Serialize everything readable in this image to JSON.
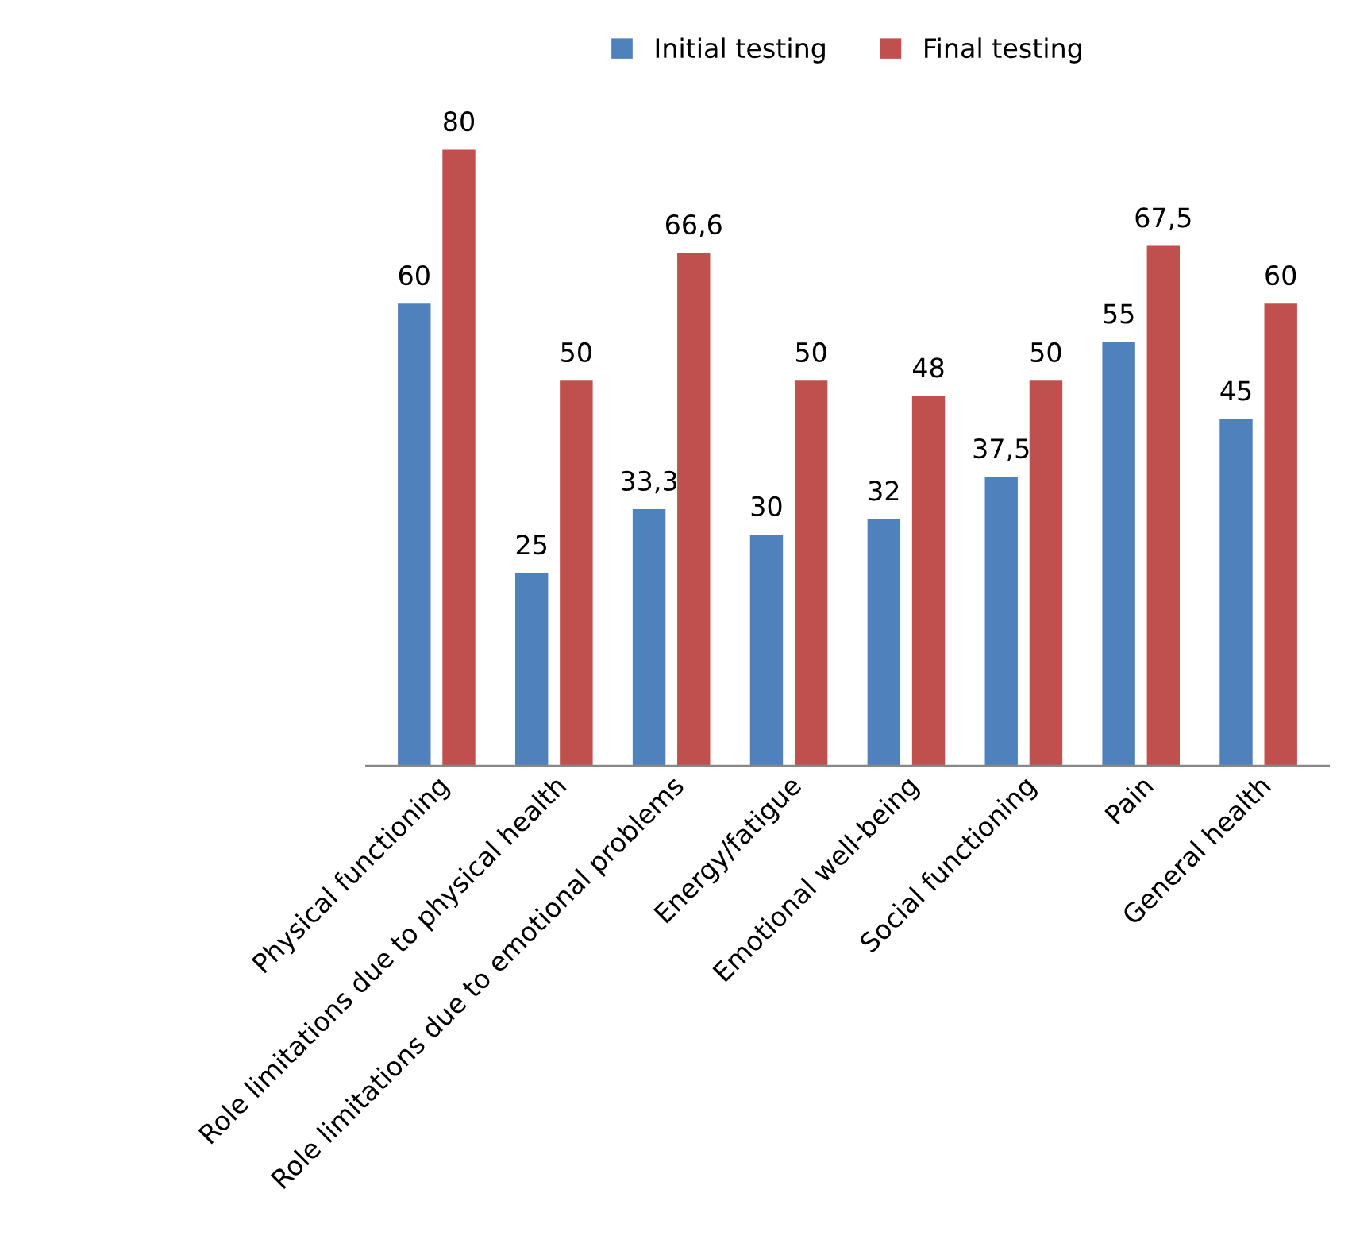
{
  "chart_data": {
    "type": "bar",
    "categories": [
      "Physical functioning",
      "Role limitations due to physical health",
      "Role limitations due to emotional problems",
      "Energy/fatigue",
      "Emotional well-being",
      "Social functioning",
      "Pain",
      "General health"
    ],
    "series": [
      {
        "name": "Initial testing",
        "color": "#4f81bd",
        "values": [
          60,
          25,
          33.3,
          30,
          32,
          37.5,
          55,
          45
        ],
        "value_labels": [
          "60",
          "25",
          "33,3",
          "30",
          "32",
          "37,5",
          "55",
          "45"
        ]
      },
      {
        "name": "Final testing",
        "color": "#c0504d",
        "values": [
          80,
          50,
          66.6,
          50,
          48,
          50,
          67.5,
          60
        ],
        "value_labels": [
          "80",
          "50",
          "66,6",
          "50",
          "48",
          "50",
          "67,5",
          "60"
        ]
      }
    ],
    "legend": "top",
    "grid": false
  }
}
